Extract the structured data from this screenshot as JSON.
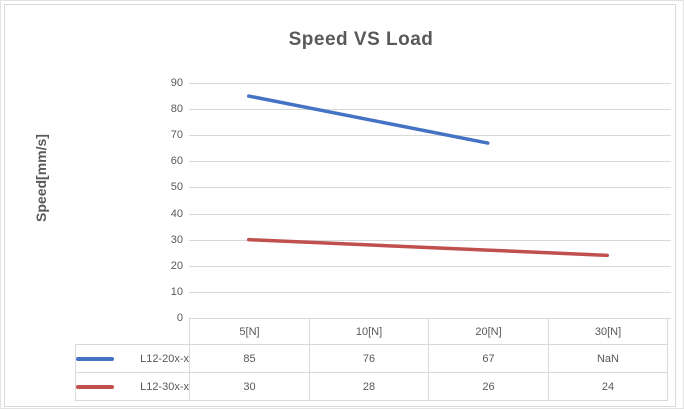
{
  "frame": {
    "background": "#ffffff",
    "outer_border_color": "#e3e3e3",
    "chart_border_color": "#d9d9d9"
  },
  "chart_data": {
    "type": "line",
    "title": "Speed VS Load",
    "ylabel": "Speed[mm/s]",
    "xlabel": "",
    "categories": [
      "5[N]",
      "10[N]",
      "20[N]",
      "30[N]"
    ],
    "series": [
      {
        "name": "L12-20x-x",
        "color": "#4472C4",
        "values": [
          85,
          76,
          67,
          null
        ],
        "display_values": [
          "85",
          "76",
          "67",
          "NaN"
        ]
      },
      {
        "name": "L12-30x-x",
        "color": "#C0504D",
        "values": [
          30,
          28,
          26,
          24
        ],
        "display_values": [
          "30",
          "28",
          "26",
          "24"
        ]
      }
    ],
    "ylim": [
      0,
      90
    ],
    "yticks": [
      0,
      10,
      20,
      30,
      40,
      50,
      60,
      70,
      80,
      90
    ],
    "grid": true,
    "legend_position": "data-table-left",
    "colors": {
      "gridline": "#d9d9d9",
      "axis": "#d9d9d9",
      "text": "#595959",
      "table_border": "#d9d9d9"
    }
  }
}
